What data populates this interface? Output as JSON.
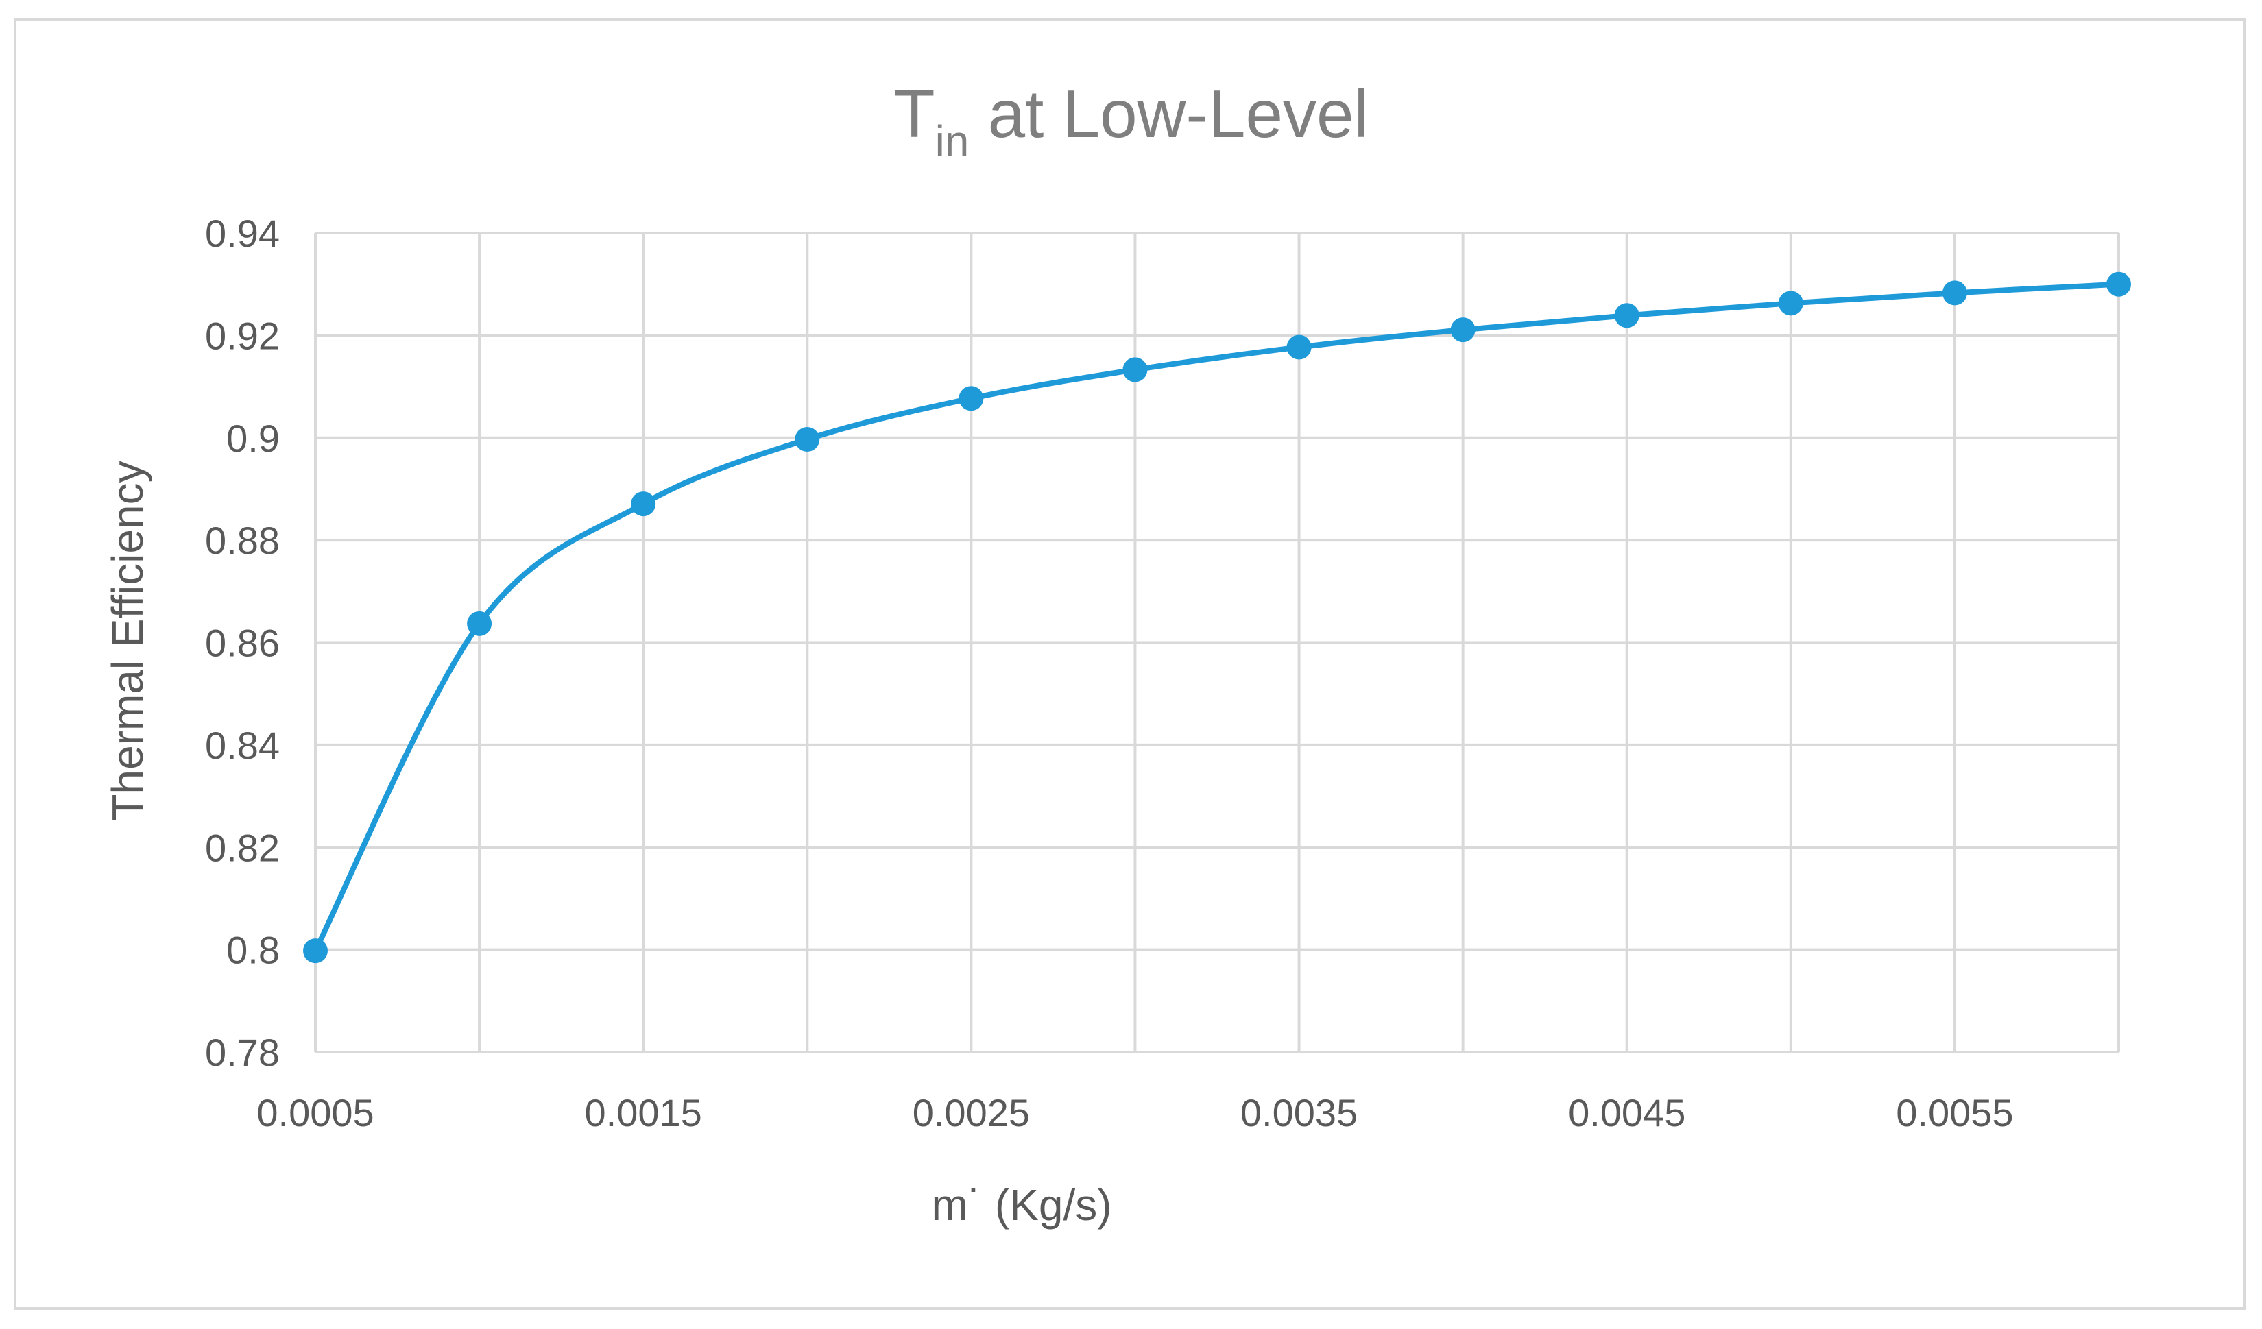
{
  "chart_data": {
    "type": "line",
    "title": {
      "main": "T",
      "subscript": "in",
      "rest": " at Low-Level"
    },
    "xlabel": "m˙ (Kg/s)",
    "ylabel": "Thermal Efficiency",
    "x_tick_labels": [
      "0.0005",
      "0.0015",
      "0.0025",
      "0.0035",
      "0.0045",
      "0.0055"
    ],
    "y_tick_labels": [
      "0.78",
      "0.8",
      "0.82",
      "0.84",
      "0.86",
      "0.88",
      "0.9",
      "0.92",
      "0.94"
    ],
    "xlim": [
      0.0005,
      0.006
    ],
    "ylim": [
      0.78,
      0.94
    ],
    "x_grid_step": 0.0005,
    "y_grid_step": 0.02,
    "grid": true,
    "legend": "none",
    "series": [
      {
        "name": "Thermal Efficiency",
        "color": "#1f9ad9",
        "smooth": true,
        "x": [
          0.0005,
          0.001,
          0.0015,
          0.002,
          0.0025,
          0.003,
          0.0035,
          0.004,
          0.0045,
          0.005,
          0.0055,
          0.006
        ],
        "y": [
          0.7998,
          0.8637,
          0.8871,
          0.8997,
          0.9077,
          0.9133,
          0.9177,
          0.9211,
          0.9239,
          0.9263,
          0.9283,
          0.93
        ]
      }
    ]
  }
}
